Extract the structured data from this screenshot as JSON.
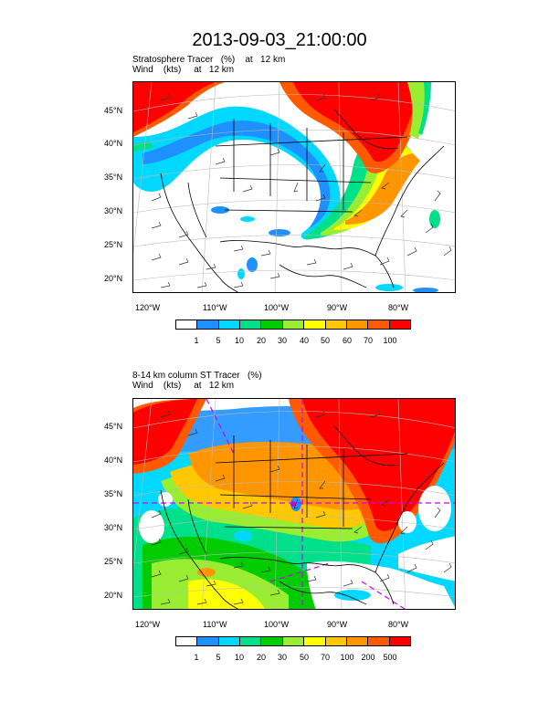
{
  "title": "2013-09-03_21:00:00",
  "colors": {
    "levels": [
      "#ffffff",
      "#1e90ff",
      "#00d8ff",
      "#00e08a",
      "#00cc00",
      "#99ee33",
      "#ffff00",
      "#ffc800",
      "#ff9600",
      "#ff5a00",
      "#ff0000"
    ]
  },
  "panels": [
    {
      "title_line1": "Stratosphere Tracer   (%)    at   12 km",
      "title_line2": "Wind    (kts)     at   12 km",
      "lat_labels": [
        "45°N",
        "40°N",
        "35°N",
        "30°N",
        "25°N",
        "20°N"
      ],
      "lon_labels": [
        "120°W",
        "110°W",
        "100°W",
        "90°W",
        "80°W"
      ],
      "colorbar_labels": [
        "1",
        "5",
        "10",
        "20",
        "30",
        "40",
        "50",
        "60",
        "70",
        "100"
      ]
    },
    {
      "title_line1": "8-14 km column ST Tracer   (%)",
      "title_line2": "Wind    (kts)     at   12 km",
      "lat_labels": [
        "45°N",
        "40°N",
        "35°N",
        "30°N",
        "25°N",
        "20°N"
      ],
      "lon_labels": [
        "120°W",
        "110°W",
        "100°W",
        "90°W",
        "80°W"
      ],
      "colorbar_labels": [
        "1",
        "5",
        "10",
        "20",
        "30",
        "50",
        "70",
        "100",
        "200",
        "500"
      ]
    }
  ]
}
